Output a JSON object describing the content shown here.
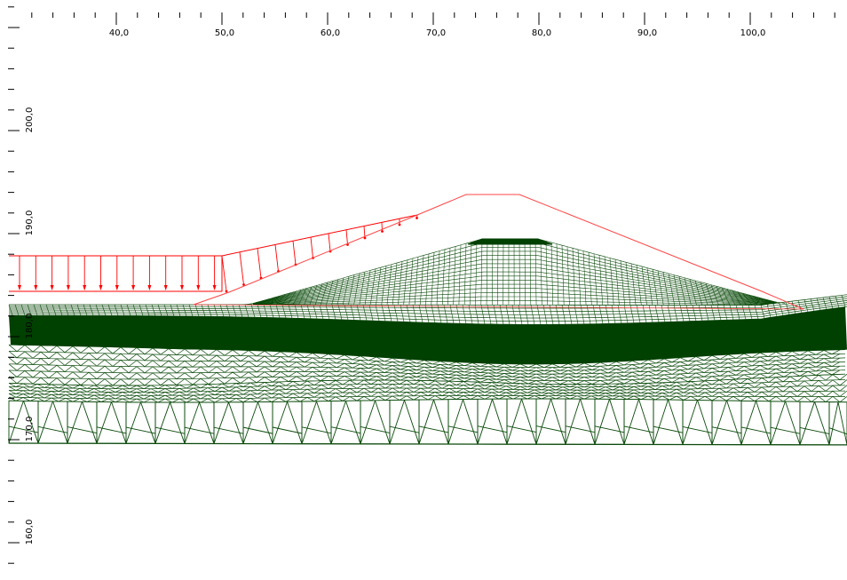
{
  "view": {
    "x_ruler": {
      "labels": [
        "40,0",
        "50,0",
        "60,0",
        "70,0",
        "80,0",
        "90,0",
        "100,0"
      ],
      "label_values": [
        40,
        50,
        60,
        70,
        80,
        90,
        100
      ],
      "minor_step": 2,
      "range": [
        31,
        109
      ]
    },
    "y_ruler": {
      "labels": [
        "200,0",
        "190,0",
        "180,0",
        "170,0",
        "160,0"
      ],
      "label_values": [
        200,
        190,
        180,
        170,
        160
      ],
      "minor_step": 2,
      "range": [
        156.9,
        213.4
      ]
    },
    "colors": {
      "mesh": "#0a4a0a",
      "mesh_dense": "#004000",
      "mesh_background": "#ffffff",
      "load": "#ff0000",
      "geometry_outline": "#ff4444",
      "ruler": "#000000"
    }
  }
}
